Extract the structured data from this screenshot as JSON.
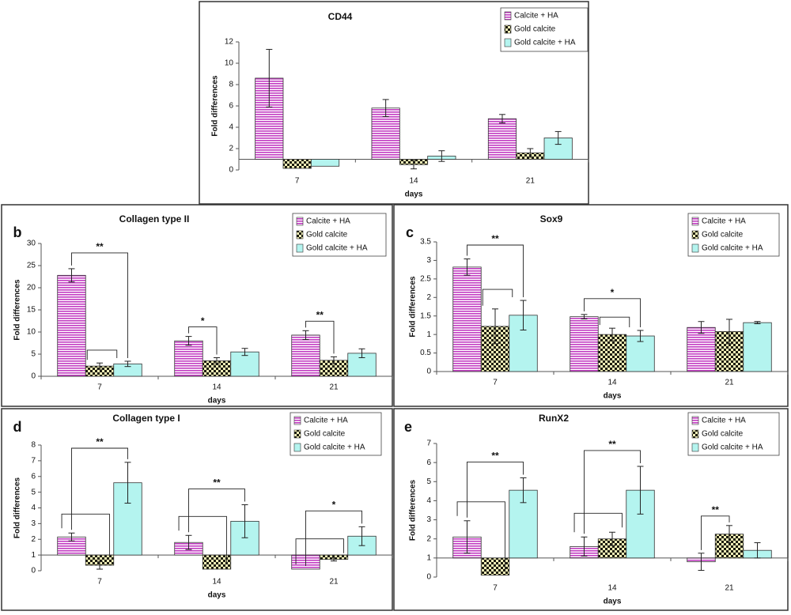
{
  "colors": {
    "calcite_ha": "#c23cc2",
    "gold_calcite": "#2a2a14",
    "gold_calcite_ha": "#b4f4ef",
    "frame": "#333333"
  },
  "chart_data": [
    {
      "id": "cd44",
      "type": "bar",
      "panel_letter": "",
      "title": "CD44",
      "xlabel": "days",
      "ylabel": "Fold differences",
      "ylim": [
        0,
        12
      ],
      "yticks": [
        "0",
        "2",
        "4",
        "6",
        "8",
        "10",
        "12"
      ],
      "baseline": 1,
      "categories": [
        "7",
        "14",
        "21"
      ],
      "legend": [
        "Calcite + HA",
        "Gold calcite",
        "Gold calcite + HA"
      ],
      "series": [
        {
          "name": "Calcite + HA",
          "pattern": "stripes",
          "values": [
            8.6,
            5.8,
            4.8
          ],
          "errors": [
            2.7,
            0.8,
            0.4
          ]
        },
        {
          "name": "Gold calcite",
          "pattern": "checks",
          "values": [
            0.15,
            0.5,
            1.6
          ],
          "errors": [
            0.0,
            0.4,
            0.4
          ]
        },
        {
          "name": "Gold calcite + HA",
          "pattern": "solid",
          "values": [
            0.35,
            1.3,
            3.0
          ],
          "errors": [
            0.0,
            0.5,
            0.6
          ]
        }
      ],
      "annotations": []
    },
    {
      "id": "collagen2",
      "type": "bar",
      "panel_letter": "b",
      "title": "Collagen type II",
      "xlabel": "days",
      "ylabel": "Fold differences",
      "ylim": [
        0,
        30
      ],
      "yticks": [
        "0",
        "5",
        "10",
        "15",
        "20",
        "25",
        "30"
      ],
      "baseline": null,
      "categories": [
        "7",
        "14",
        "21"
      ],
      "legend": [
        "Calcite + HA",
        "Gold calcite",
        "Gold calcite + HA"
      ],
      "series": [
        {
          "name": "Calcite + HA",
          "pattern": "stripes",
          "values": [
            22.8,
            8.0,
            9.3
          ],
          "errors": [
            1.5,
            1.0,
            1.0
          ]
        },
        {
          "name": "Gold calcite",
          "pattern": "checks",
          "values": [
            2.3,
            3.5,
            3.6
          ],
          "errors": [
            0.7,
            0.7,
            0.8
          ]
        },
        {
          "name": "Gold calcite + HA",
          "pattern": "solid",
          "values": [
            2.8,
            5.5,
            5.2
          ],
          "errors": [
            0.6,
            0.8,
            1.0
          ]
        }
      ],
      "annotations": [
        {
          "cat": 0,
          "type": "outer",
          "label": "**"
        },
        {
          "cat": 0,
          "type": "inner",
          "label": ""
        },
        {
          "cat": 1,
          "type": "pair",
          "label": "*"
        },
        {
          "cat": 2,
          "type": "pair",
          "label": "**"
        }
      ]
    },
    {
      "id": "sox9",
      "type": "bar",
      "panel_letter": "c",
      "title": "Sox9",
      "xlabel": "days",
      "ylabel": "Fold differences",
      "ylim": [
        0,
        3.5
      ],
      "yticks": [
        "0",
        "0.5",
        "1",
        "1.5",
        "2",
        "2.5",
        "3",
        "3.5"
      ],
      "baseline": null,
      "categories": [
        "7",
        "14",
        "21"
      ],
      "legend": [
        "Calcite + HA",
        "Gold calcite",
        "Gold calcite + HA"
      ],
      "series": [
        {
          "name": "Calcite + HA",
          "pattern": "stripes",
          "values": [
            2.82,
            1.48,
            1.19
          ],
          "errors": [
            0.22,
            0.06,
            0.16
          ]
        },
        {
          "name": "Gold calcite",
          "pattern": "checks",
          "values": [
            1.22,
            1.0,
            1.08
          ],
          "errors": [
            0.47,
            0.17,
            0.33
          ]
        },
        {
          "name": "Gold calcite + HA",
          "pattern": "solid",
          "values": [
            1.52,
            0.96,
            1.32
          ],
          "errors": [
            0.4,
            0.15,
            0.03
          ]
        }
      ],
      "annotations": [
        {
          "cat": 0,
          "type": "outer",
          "label": "**"
        },
        {
          "cat": 0,
          "type": "inner",
          "label": ""
        },
        {
          "cat": 1,
          "type": "outer",
          "label": "*"
        },
        {
          "cat": 1,
          "type": "inner",
          "label": ""
        }
      ]
    },
    {
      "id": "collagen1",
      "type": "bar",
      "panel_letter": "d",
      "title": "Collagen type I",
      "xlabel": "days",
      "ylabel": "Fold differences",
      "ylim": [
        0,
        8
      ],
      "yticks": [
        "0",
        "1",
        "2",
        "3",
        "4",
        "5",
        "6",
        "7",
        "8"
      ],
      "baseline": 1,
      "categories": [
        "7",
        "14",
        "21"
      ],
      "legend": [
        "Calcite + HA",
        "Gold calcite",
        "Gold calcite + HA"
      ],
      "series": [
        {
          "name": "Calcite + HA",
          "pattern": "stripes",
          "values": [
            2.15,
            1.8,
            0.1
          ],
          "errors": [
            0.25,
            0.45,
            0.0
          ]
        },
        {
          "name": "Gold calcite",
          "pattern": "checks",
          "values": [
            0.35,
            0.1,
            0.72
          ],
          "errors": [
            0.25,
            0.0,
            0.1
          ]
        },
        {
          "name": "Gold calcite + HA",
          "pattern": "solid",
          "values": [
            5.6,
            3.15,
            2.2
          ],
          "errors": [
            1.3,
            1.05,
            0.6
          ]
        }
      ],
      "annotations": [
        {
          "cat": 0,
          "type": "left",
          "label": ""
        },
        {
          "cat": 0,
          "type": "outer",
          "label": "**"
        },
        {
          "cat": 1,
          "type": "left",
          "label": ""
        },
        {
          "cat": 1,
          "type": "outer",
          "label": "**"
        },
        {
          "cat": 2,
          "type": "left",
          "label": ""
        },
        {
          "cat": 2,
          "type": "outer",
          "label": "*"
        }
      ]
    },
    {
      "id": "runx2",
      "type": "bar",
      "panel_letter": "e",
      "title": "RunX2",
      "xlabel": "days",
      "ylabel": "Fold differences",
      "ylim": [
        0,
        7
      ],
      "yticks": [
        "0",
        "1",
        "2",
        "3",
        "4",
        "5",
        "6",
        "7"
      ],
      "baseline": 1,
      "categories": [
        "7",
        "14",
        "21"
      ],
      "legend": [
        "Calcite + HA",
        "Gold calcite",
        "Gold calcite + HA"
      ],
      "series": [
        {
          "name": "Calcite + HA",
          "pattern": "stripes",
          "values": [
            2.1,
            1.6,
            0.8
          ],
          "errors": [
            0.85,
            0.5,
            0.45
          ]
        },
        {
          "name": "Gold calcite",
          "pattern": "checks",
          "values": [
            0.1,
            2.0,
            2.25
          ],
          "errors": [
            0.0,
            0.35,
            0.45
          ]
        },
        {
          "name": "Gold calcite + HA",
          "pattern": "solid",
          "values": [
            4.55,
            4.55,
            1.4
          ],
          "errors": [
            0.65,
            1.25,
            0.4
          ]
        }
      ],
      "annotations": [
        {
          "cat": 0,
          "type": "left",
          "label": ""
        },
        {
          "cat": 0,
          "type": "outer",
          "label": "**"
        },
        {
          "cat": 1,
          "type": "left",
          "label": ""
        },
        {
          "cat": 1,
          "type": "outer",
          "label": "**"
        },
        {
          "cat": 2,
          "type": "pair",
          "label": "**"
        }
      ]
    }
  ]
}
